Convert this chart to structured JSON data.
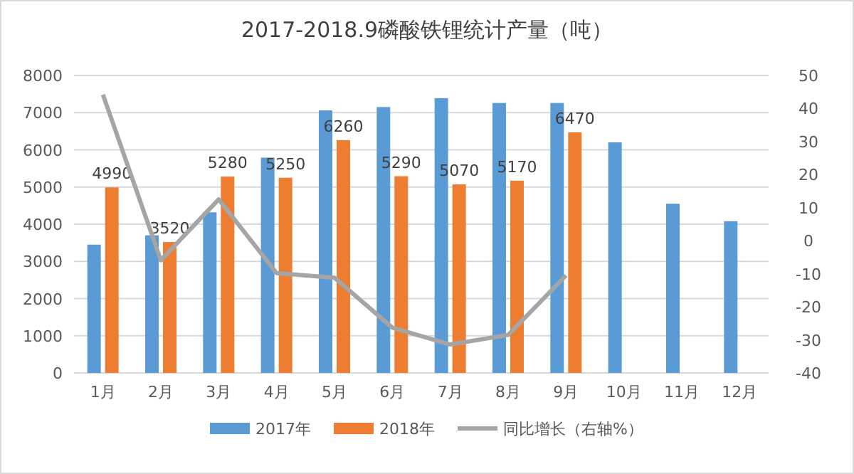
{
  "chart_data": {
    "type": "bar",
    "title": "2017-2018.9磷酸铁锂统计产量（吨）",
    "categories": [
      "1月",
      "2月",
      "3月",
      "4月",
      "5月",
      "6月",
      "7月",
      "8月",
      "9月",
      "10月",
      "11月",
      "12月"
    ],
    "series": [
      {
        "name": "2017年",
        "color": "#5b9bd5",
        "values": [
          3450,
          3700,
          4320,
          5790,
          7060,
          7150,
          7390,
          7260,
          7260,
          6200,
          4550,
          4080
        ]
      },
      {
        "name": "2018年",
        "color": "#ed7d31",
        "values": [
          4990,
          3520,
          5280,
          5250,
          6260,
          5290,
          5070,
          5170,
          6470,
          null,
          null,
          null
        ],
        "value_labels": [
          "4990",
          "3520",
          "5280",
          "5250",
          "6260",
          "5290",
          "5070",
          "5170",
          "6470",
          null,
          null,
          null
        ]
      },
      {
        "name": "同比增长（右轴%）",
        "type": "line",
        "axis": "y2",
        "color": "#a5a5a5",
        "values": [
          44.2,
          -5.9,
          12.5,
          -9.8,
          -11.2,
          -26.3,
          -31.4,
          -28.5,
          -10.5,
          null,
          null,
          null
        ]
      }
    ],
    "ylim": [
      0,
      8000
    ],
    "yticks": [
      0,
      1000,
      2000,
      3000,
      4000,
      5000,
      6000,
      7000,
      8000
    ],
    "y2lim": [
      -40,
      50
    ],
    "y2ticks": [
      -40,
      -30,
      -20,
      -10,
      0,
      10,
      20,
      30,
      40,
      50
    ],
    "grid": "y",
    "legend": "bottom"
  }
}
